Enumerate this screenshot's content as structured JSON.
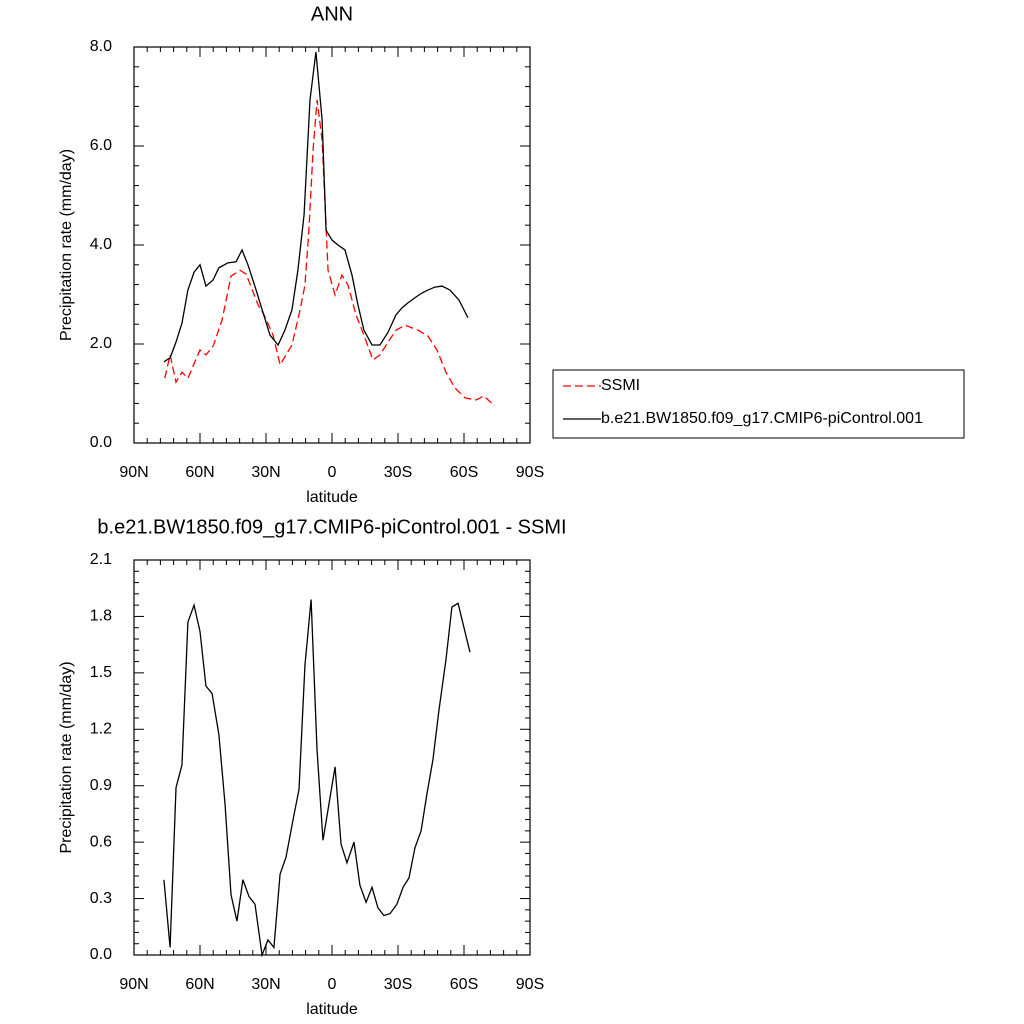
{
  "chart_data": [
    {
      "type": "line",
      "title": "ANN",
      "x_label": "latitude",
      "y_label": "Precipitation rate (mm/day)",
      "xlim": [
        90,
        -90
      ],
      "xticks": [
        {
          "value": 90,
          "label": "90N"
        },
        {
          "value": 60,
          "label": "60N"
        },
        {
          "value": 30,
          "label": "30N"
        },
        0,
        {
          "value": -30,
          "label": "30S"
        },
        {
          "value": -60,
          "label": "60S"
        },
        {
          "value": -90,
          "label": "90S"
        }
      ],
      "ylim": [
        0,
        8
      ],
      "yticks": [
        {
          "value": 0,
          "label": "0.0"
        },
        {
          "value": 2,
          "label": "2.0"
        },
        {
          "value": 4,
          "label": "4.0"
        },
        {
          "value": 6,
          "label": "6.0"
        },
        {
          "value": 8,
          "label": "8.0"
        }
      ],
      "legend": "right",
      "series": [
        {
          "name": "SSMI",
          "color": "#ff0000",
          "dashed": true,
          "x": [
            76,
            73.6,
            70.9,
            68.2,
            65.5,
            60,
            57.3,
            54,
            50,
            45.9,
            41.8,
            39,
            33.6,
            30.9,
            26.8,
            23.6,
            18.2,
            14.5,
            12.3,
            10.5,
            8.6,
            6.8,
            4.5,
            1.8,
            -1.4,
            -4.5,
            -7.3,
            -10.9,
            -14.5,
            -18.6,
            -21.8,
            -25.5,
            -29.1,
            -33.2,
            -39.1,
            -43.6,
            -47.7,
            -51.8,
            -55.9,
            -60.5,
            -65.5,
            -69,
            -74
          ],
          "values": [
            1.31,
            1.78,
            1.23,
            1.43,
            1.31,
            1.88,
            1.78,
            1.96,
            2.48,
            3.37,
            3.49,
            3.41,
            2.79,
            2.59,
            2.18,
            1.58,
            1.98,
            2.69,
            3.19,
            4.3,
            5.92,
            6.93,
            6.12,
            3.49,
            2.99,
            3.39,
            3.19,
            2.59,
            2.18,
            1.68,
            1.78,
            2.04,
            2.28,
            2.38,
            2.28,
            2.16,
            1.88,
            1.43,
            1.11,
            0.91,
            0.87,
            0.95,
            0.75
          ]
        },
        {
          "name": "b.e21.BW1850.f09_g17.CMIP6-piControl.001",
          "color": "#000000",
          "dashed": false,
          "x": [
            76.4,
            73.6,
            70.9,
            68.2,
            65.5,
            62.7,
            60,
            57.3,
            54.1,
            51.4,
            47.3,
            43.6,
            40.9,
            38.2,
            34.5,
            30.9,
            28.2,
            24.5,
            21.4,
            18.2,
            15.5,
            12.7,
            10,
            7.3,
            4.5,
            2.7,
            0,
            -2.7,
            -5.9,
            -9.1,
            -11.8,
            -14.5,
            -18.2,
            -21.8,
            -25.5,
            -29.1,
            -31.8,
            -34.5,
            -38.2,
            -40.9,
            -43.6,
            -46.8,
            -50,
            -53.6,
            -57.7,
            -61.8
          ],
          "values": [
            1.64,
            1.72,
            2.04,
            2.42,
            3.09,
            3.45,
            3.6,
            3.17,
            3.29,
            3.54,
            3.64,
            3.66,
            3.9,
            3.6,
            3.09,
            2.57,
            2.18,
            1.98,
            2.28,
            2.69,
            3.49,
            4.61,
            6.93,
            7.9,
            6.53,
            4.3,
            4.1,
            4.0,
            3.9,
            3.39,
            2.79,
            2.28,
            1.98,
            1.98,
            2.24,
            2.59,
            2.73,
            2.83,
            2.95,
            3.03,
            3.09,
            3.15,
            3.17,
            3.09,
            2.89,
            2.53
          ]
        }
      ]
    },
    {
      "type": "line",
      "title": "b.e21.BW1850.f09_g17.CMIP6-piControl.001 - SSMI",
      "x_label": "latitude",
      "y_label": "Precipitation rate (mm/day)",
      "xlim": [
        90,
        -90
      ],
      "xticks": [
        {
          "value": 90,
          "label": "90N"
        },
        {
          "value": 60,
          "label": "60N"
        },
        {
          "value": 30,
          "label": "30N"
        },
        0,
        {
          "value": -30,
          "label": "30S"
        },
        {
          "value": -60,
          "label": "60S"
        },
        {
          "value": -90,
          "label": "90S"
        }
      ],
      "ylim": [
        0,
        2.1
      ],
      "yticks": [
        {
          "value": 0,
          "label": "0.0"
        },
        0.3,
        0.6,
        0.9,
        1.2,
        1.5,
        1.8,
        2.1
      ],
      "series": [
        {
          "color": "#000000",
          "dashed": false,
          "x": [
            76.4,
            73.6,
            70.9,
            68.2,
            65.5,
            62.7,
            60,
            57.3,
            54.5,
            51.4,
            48.6,
            45.9,
            43.2,
            40.5,
            37.7,
            35,
            31.8,
            29.1,
            26.4,
            23.6,
            20.9,
            17.7,
            15,
            12.3,
            9.5,
            6.8,
            4.1,
            -1.4,
            -4.1,
            -6.8,
            -10,
            -12.7,
            -15.5,
            -18.2,
            -20.9,
            -23.6,
            -26.4,
            -29.5,
            -32.3,
            -35,
            -37.7,
            -40.5,
            -43.2,
            -45.9,
            -48.6,
            -51.8,
            -54.5,
            -57.3,
            -60,
            -62.7
          ],
          "values": [
            0.4,
            0.04,
            0.89,
            1.01,
            1.77,
            1.86,
            1.72,
            1.43,
            1.39,
            1.17,
            0.8,
            0.32,
            0.18,
            0.4,
            0.31,
            0.27,
            0.0,
            0.08,
            0.04,
            0.43,
            0.52,
            0.72,
            0.88,
            1.54,
            1.89,
            1.09,
            0.61,
            1.0,
            0.59,
            0.49,
            0.6,
            0.37,
            0.28,
            0.36,
            0.25,
            0.21,
            0.22,
            0.27,
            0.36,
            0.41,
            0.57,
            0.66,
            0.86,
            1.04,
            1.3,
            1.57,
            1.85,
            1.87,
            1.74,
            1.61
          ]
        }
      ]
    }
  ]
}
